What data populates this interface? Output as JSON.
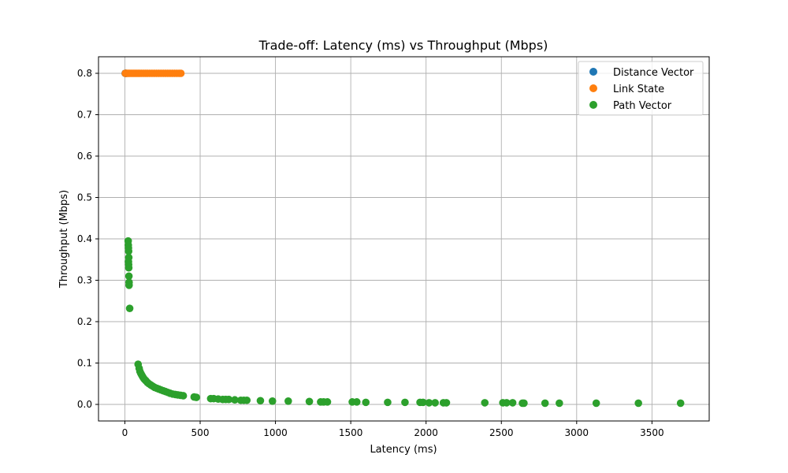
{
  "chart_data": {
    "type": "scatter",
    "title": "Trade-off: Latency (ms) vs Throughput (Mbps)",
    "xlabel": "Latency (ms)",
    "ylabel": "Throughput (Mbps)",
    "xlim": [
      -175,
      3880
    ],
    "ylim": [
      -0.04,
      0.84
    ],
    "xticks": [
      0,
      500,
      1000,
      1500,
      2000,
      2500,
      3000,
      3500
    ],
    "yticks": [
      0.0,
      0.1,
      0.2,
      0.3,
      0.4,
      0.5,
      0.6,
      0.7,
      0.8
    ],
    "grid": true,
    "legend_position": "top-right",
    "series": [
      {
        "name": "Distance Vector",
        "color": "#1f77b4",
        "points": [
          [
            2,
            0.8
          ],
          [
            4,
            0.8
          ],
          [
            6,
            0.8
          ],
          [
            8,
            0.8
          ]
        ]
      },
      {
        "name": "Link State",
        "color": "#ff7f0e",
        "points": [
          [
            3,
            0.8
          ],
          [
            8,
            0.8
          ],
          [
            14,
            0.8
          ],
          [
            22,
            0.8
          ],
          [
            30,
            0.8
          ],
          [
            40,
            0.8
          ],
          [
            50,
            0.8
          ],
          [
            60,
            0.8
          ],
          [
            70,
            0.8
          ],
          [
            80,
            0.8
          ],
          [
            90,
            0.8
          ],
          [
            100,
            0.8
          ],
          [
            112,
            0.8
          ],
          [
            125,
            0.8
          ],
          [
            138,
            0.8
          ],
          [
            150,
            0.8
          ],
          [
            165,
            0.8
          ],
          [
            180,
            0.8
          ],
          [
            195,
            0.8
          ],
          [
            210,
            0.8
          ],
          [
            225,
            0.8
          ],
          [
            240,
            0.8
          ],
          [
            255,
            0.8
          ],
          [
            270,
            0.8
          ],
          [
            285,
            0.8
          ],
          [
            300,
            0.8
          ],
          [
            315,
            0.8
          ],
          [
            330,
            0.8
          ],
          [
            345,
            0.8
          ],
          [
            360,
            0.8
          ],
          [
            372,
            0.8
          ]
        ]
      },
      {
        "name": "Path Vector",
        "color": "#2ca02c",
        "points": [
          [
            22,
            0.395
          ],
          [
            23,
            0.385
          ],
          [
            24,
            0.378
          ],
          [
            25,
            0.37
          ],
          [
            26,
            0.355
          ],
          [
            24,
            0.345
          ],
          [
            25,
            0.338
          ],
          [
            26,
            0.33
          ],
          [
            27,
            0.31
          ],
          [
            28,
            0.295
          ],
          [
            28,
            0.288
          ],
          [
            32,
            0.232
          ],
          [
            88,
            0.097
          ],
          [
            95,
            0.087
          ],
          [
            100,
            0.08
          ],
          [
            106,
            0.075
          ],
          [
            112,
            0.071
          ],
          [
            118,
            0.067
          ],
          [
            125,
            0.063
          ],
          [
            132,
            0.06
          ],
          [
            140,
            0.057
          ],
          [
            150,
            0.053
          ],
          [
            160,
            0.05
          ],
          [
            172,
            0.047
          ],
          [
            185,
            0.044
          ],
          [
            198,
            0.041
          ],
          [
            212,
            0.039
          ],
          [
            226,
            0.037
          ],
          [
            240,
            0.035
          ],
          [
            255,
            0.033
          ],
          [
            270,
            0.031
          ],
          [
            285,
            0.029
          ],
          [
            300,
            0.027
          ],
          [
            318,
            0.025
          ],
          [
            335,
            0.024
          ],
          [
            352,
            0.023
          ],
          [
            370,
            0.022
          ],
          [
            388,
            0.021
          ],
          [
            460,
            0.018
          ],
          [
            475,
            0.017
          ],
          [
            570,
            0.014
          ],
          [
            590,
            0.014
          ],
          [
            620,
            0.013
          ],
          [
            650,
            0.012
          ],
          [
            670,
            0.012
          ],
          [
            690,
            0.012
          ],
          [
            730,
            0.011
          ],
          [
            770,
            0.01
          ],
          [
            790,
            0.01
          ],
          [
            810,
            0.01
          ],
          [
            900,
            0.009
          ],
          [
            980,
            0.008
          ],
          [
            1085,
            0.008
          ],
          [
            1225,
            0.007
          ],
          [
            1300,
            0.006
          ],
          [
            1320,
            0.006
          ],
          [
            1345,
            0.006
          ],
          [
            1510,
            0.006
          ],
          [
            1540,
            0.006
          ],
          [
            1600,
            0.005
          ],
          [
            1745,
            0.005
          ],
          [
            1860,
            0.005
          ],
          [
            1960,
            0.005
          ],
          [
            1980,
            0.005
          ],
          [
            2020,
            0.004
          ],
          [
            2060,
            0.004
          ],
          [
            2115,
            0.004
          ],
          [
            2135,
            0.004
          ],
          [
            2390,
            0.004
          ],
          [
            2510,
            0.004
          ],
          [
            2535,
            0.004
          ],
          [
            2575,
            0.004
          ],
          [
            2640,
            0.003
          ],
          [
            2650,
            0.003
          ],
          [
            2790,
            0.003
          ],
          [
            2885,
            0.003
          ],
          [
            3130,
            0.003
          ],
          [
            3410,
            0.003
          ],
          [
            3690,
            0.003
          ]
        ]
      }
    ]
  }
}
